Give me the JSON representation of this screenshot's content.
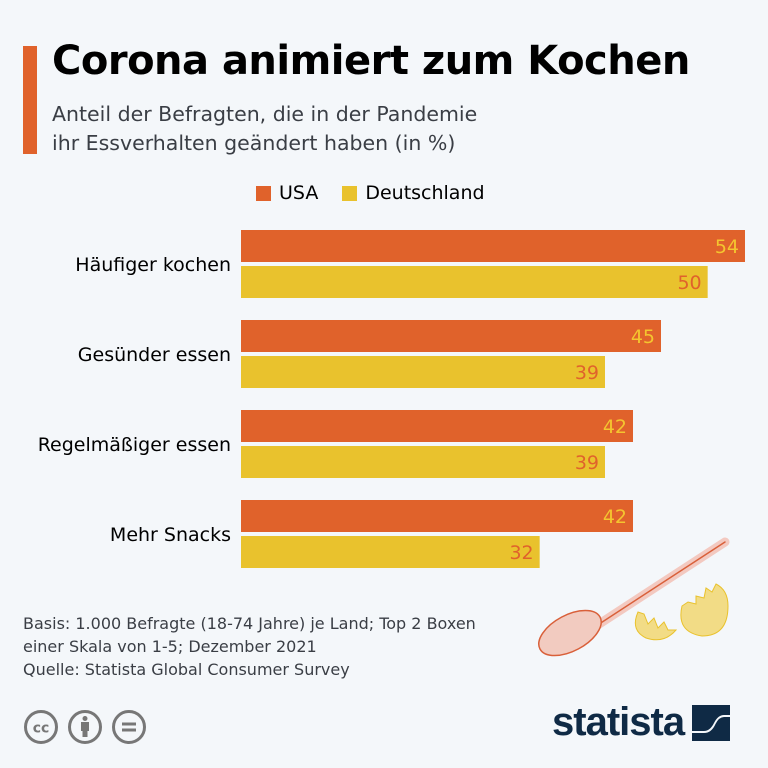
{
  "header": {
    "title": "Corona animiert zum Kochen",
    "subtitle_line1": "Anteil der Befragten, die in der Pandemie",
    "subtitle_line2": "ihr Essverhalten geändert haben (in %)"
  },
  "colors": {
    "accent": "#e0622b",
    "usa": "#e0622b",
    "deutschland": "#e9c22d",
    "usa_label": "#f4c52f",
    "deutschland_label": "#e0622b",
    "logo": "#0f2a45",
    "background": "#f4f7fa"
  },
  "chart_data": {
    "type": "bar",
    "orientation": "horizontal",
    "title": "Corona animiert zum Kochen",
    "subtitle": "Anteil der Befragten, die in der Pandemie ihr Essverhalten geändert haben (in %)",
    "categories": [
      "Häufiger kochen",
      "Gesünder essen",
      "Regelmäßiger essen",
      "Mehr Snacks"
    ],
    "series": [
      {
        "name": "USA",
        "values": [
          54,
          45,
          42,
          42
        ]
      },
      {
        "name": "Deutschland",
        "values": [
          50,
          39,
          39,
          32
        ]
      }
    ],
    "xlabel": "",
    "ylabel": "",
    "xlim": [
      0,
      54
    ],
    "grid": false,
    "legend_position": "top",
    "data_labels": true
  },
  "legend": [
    {
      "label": "USA"
    },
    {
      "label": "Deutschland"
    }
  ],
  "footer": {
    "notes_line1": "Basis: 1.000 Befragte (18-74 Jahre) je Land; Top 2 Boxen",
    "notes_line2": "einer Skala von 1-5; Dezember 2021",
    "source": "Quelle: Statista Global Consumer Survey",
    "logo_text": "statista",
    "license_icons": [
      "cc-icon",
      "attribution-icon",
      "no-derivatives-icon"
    ]
  }
}
